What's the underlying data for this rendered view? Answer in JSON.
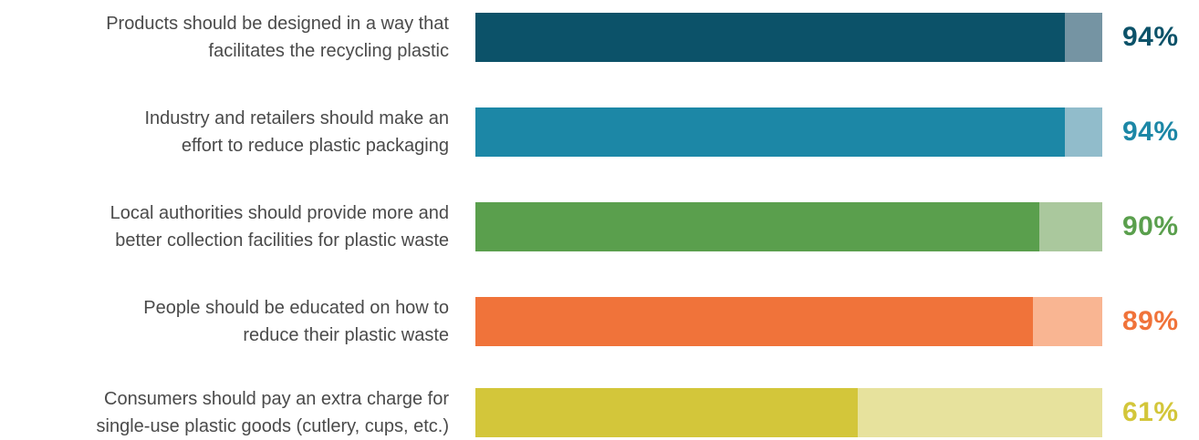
{
  "chart_data": {
    "type": "bar",
    "orientation": "horizontal",
    "title": "",
    "categories": [
      [
        "Products should be designed in a way that",
        "facilitates the recycling plastic"
      ],
      [
        "Industry and retailers should make an",
        "effort to reduce plastic packaging"
      ],
      [
        "Local authorities should provide more and",
        "better collection facilities for plastic waste"
      ],
      [
        "People should be educated on how to",
        "reduce their plastic waste"
      ],
      [
        "Consumers should pay an extra charge for",
        "single-use plastic goods (cutlery, cups, etc.)"
      ]
    ],
    "values": [
      94,
      94,
      90,
      89,
      61
    ],
    "value_labels": [
      "94%",
      "94%",
      "90%",
      "89%",
      "61%"
    ],
    "xlim": [
      0,
      100
    ],
    "colors": [
      {
        "fill": "#0c5269",
        "track": "#7594a3",
        "text": "#0c5269"
      },
      {
        "fill": "#1c87a6",
        "track": "#91bccb",
        "text": "#1c87a6"
      },
      {
        "fill": "#5a9f4d",
        "track": "#aac89d",
        "text": "#5a9f4d"
      },
      {
        "fill": "#f0733a",
        "track": "#f9b592",
        "text": "#f0733a"
      },
      {
        "fill": "#d3c63a",
        "track": "#e7e29d",
        "text": "#d3c63a"
      }
    ]
  }
}
